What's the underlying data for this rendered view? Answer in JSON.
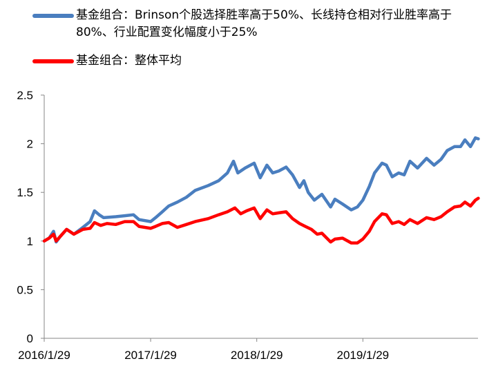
{
  "chart_data": {
    "type": "line",
    "ylim": [
      0,
      2.5
    ],
    "yticks": [
      "0",
      "0.5",
      "1",
      "1.5",
      "2",
      "2.5"
    ],
    "xticks": [
      "2016/1/29",
      "2017/1/29",
      "2018/1/29",
      "2019/1/29"
    ],
    "grid": "none",
    "legend_position": "top",
    "series": [
      {
        "name": "基金组合：Brinson个股选择胜率高于50%、长线持仓相对行业胜率高于80%、行业配置变化幅度小于25%",
        "color": "#4a7ebf",
        "points": [
          [
            "2016-01-29",
            1.0
          ],
          [
            "2016-02-15",
            1.03
          ],
          [
            "2016-03-01",
            1.1
          ],
          [
            "2016-03-10",
            0.99
          ],
          [
            "2016-03-25",
            1.05
          ],
          [
            "2016-04-15",
            1.12
          ],
          [
            "2016-05-10",
            1.07
          ],
          [
            "2016-06-10",
            1.14
          ],
          [
            "2016-07-05",
            1.2
          ],
          [
            "2016-07-20",
            1.31
          ],
          [
            "2016-08-05",
            1.27
          ],
          [
            "2016-08-20",
            1.24
          ],
          [
            "2016-10-01",
            1.25
          ],
          [
            "2016-11-01",
            1.26
          ],
          [
            "2016-12-01",
            1.27
          ],
          [
            "2016-12-20",
            1.22
          ],
          [
            "2017-01-29",
            1.2
          ],
          [
            "2017-02-15",
            1.24
          ],
          [
            "2017-03-10",
            1.3
          ],
          [
            "2017-04-01",
            1.36
          ],
          [
            "2017-05-01",
            1.4
          ],
          [
            "2017-06-01",
            1.45
          ],
          [
            "2017-07-01",
            1.52
          ],
          [
            "2017-08-15",
            1.57
          ],
          [
            "2017-09-20",
            1.62
          ],
          [
            "2017-10-20",
            1.7
          ],
          [
            "2017-11-10",
            1.82
          ],
          [
            "2017-11-25",
            1.7
          ],
          [
            "2017-12-20",
            1.75
          ],
          [
            "2018-01-20",
            1.8
          ],
          [
            "2018-02-10",
            1.65
          ],
          [
            "2018-03-05",
            1.78
          ],
          [
            "2018-03-25",
            1.7
          ],
          [
            "2018-04-15",
            1.72
          ],
          [
            "2018-05-10",
            1.76
          ],
          [
            "2018-06-01",
            1.68
          ],
          [
            "2018-06-25",
            1.55
          ],
          [
            "2018-07-10",
            1.62
          ],
          [
            "2018-07-25",
            1.5
          ],
          [
            "2018-08-15",
            1.42
          ],
          [
            "2018-09-10",
            1.48
          ],
          [
            "2018-10-10",
            1.35
          ],
          [
            "2018-10-25",
            1.43
          ],
          [
            "2018-11-20",
            1.38
          ],
          [
            "2018-12-20",
            1.32
          ],
          [
            "2019-01-10",
            1.35
          ],
          [
            "2019-01-29",
            1.42
          ],
          [
            "2019-02-20",
            1.56
          ],
          [
            "2019-03-10",
            1.7
          ],
          [
            "2019-04-05",
            1.8
          ],
          [
            "2019-04-20",
            1.78
          ],
          [
            "2019-05-10",
            1.66
          ],
          [
            "2019-06-01",
            1.7
          ],
          [
            "2019-06-20",
            1.68
          ],
          [
            "2019-07-10",
            1.82
          ],
          [
            "2019-08-05",
            1.75
          ],
          [
            "2019-09-05",
            1.85
          ],
          [
            "2019-10-01",
            1.78
          ],
          [
            "2019-10-25",
            1.84
          ],
          [
            "2019-11-15",
            1.93
          ],
          [
            "2019-12-10",
            1.97
          ],
          [
            "2019-12-31",
            1.97
          ],
          [
            "2020-01-15",
            2.04
          ],
          [
            "2020-02-03",
            1.97
          ],
          [
            "2020-02-20",
            2.06
          ],
          [
            "2020-03-01",
            2.05
          ]
        ]
      },
      {
        "name": "基金组合：整体平均",
        "color": "#ff0000",
        "points": [
          [
            "2016-01-29",
            1.0
          ],
          [
            "2016-02-15",
            1.03
          ],
          [
            "2016-03-01",
            1.07
          ],
          [
            "2016-03-10",
            1.0
          ],
          [
            "2016-03-25",
            1.05
          ],
          [
            "2016-04-15",
            1.12
          ],
          [
            "2016-05-10",
            1.07
          ],
          [
            "2016-06-10",
            1.12
          ],
          [
            "2016-07-05",
            1.13
          ],
          [
            "2016-07-20",
            1.19
          ],
          [
            "2016-08-10",
            1.16
          ],
          [
            "2016-09-01",
            1.18
          ],
          [
            "2016-10-01",
            1.17
          ],
          [
            "2016-11-01",
            1.2
          ],
          [
            "2016-12-01",
            1.2
          ],
          [
            "2016-12-20",
            1.15
          ],
          [
            "2017-01-29",
            1.13
          ],
          [
            "2017-02-15",
            1.15
          ],
          [
            "2017-03-10",
            1.18
          ],
          [
            "2017-04-01",
            1.19
          ],
          [
            "2017-05-01",
            1.14
          ],
          [
            "2017-06-01",
            1.17
          ],
          [
            "2017-07-01",
            1.2
          ],
          [
            "2017-08-15",
            1.23
          ],
          [
            "2017-09-20",
            1.27
          ],
          [
            "2017-10-20",
            1.3
          ],
          [
            "2017-11-15",
            1.34
          ],
          [
            "2017-12-05",
            1.28
          ],
          [
            "2017-12-25",
            1.31
          ],
          [
            "2018-01-20",
            1.34
          ],
          [
            "2018-02-10",
            1.23
          ],
          [
            "2018-03-05",
            1.32
          ],
          [
            "2018-03-25",
            1.28
          ],
          [
            "2018-04-15",
            1.29
          ],
          [
            "2018-05-10",
            1.3
          ],
          [
            "2018-06-01",
            1.23
          ],
          [
            "2018-06-25",
            1.18
          ],
          [
            "2018-07-15",
            1.15
          ],
          [
            "2018-08-05",
            1.12
          ],
          [
            "2018-08-25",
            1.07
          ],
          [
            "2018-09-10",
            1.08
          ],
          [
            "2018-10-10",
            0.99
          ],
          [
            "2018-10-25",
            1.02
          ],
          [
            "2018-11-20",
            1.03
          ],
          [
            "2018-12-20",
            0.98
          ],
          [
            "2019-01-10",
            0.98
          ],
          [
            "2019-01-29",
            1.02
          ],
          [
            "2019-02-20",
            1.1
          ],
          [
            "2019-03-10",
            1.2
          ],
          [
            "2019-04-05",
            1.28
          ],
          [
            "2019-04-20",
            1.27
          ],
          [
            "2019-05-10",
            1.18
          ],
          [
            "2019-06-01",
            1.2
          ],
          [
            "2019-06-20",
            1.17
          ],
          [
            "2019-07-10",
            1.22
          ],
          [
            "2019-08-05",
            1.18
          ],
          [
            "2019-09-05",
            1.24
          ],
          [
            "2019-10-01",
            1.22
          ],
          [
            "2019-10-25",
            1.25
          ],
          [
            "2019-11-15",
            1.3
          ],
          [
            "2019-12-10",
            1.35
          ],
          [
            "2019-12-31",
            1.36
          ],
          [
            "2020-01-15",
            1.4
          ],
          [
            "2020-02-03",
            1.36
          ],
          [
            "2020-02-20",
            1.42
          ],
          [
            "2020-03-01",
            1.44
          ]
        ]
      }
    ]
  }
}
